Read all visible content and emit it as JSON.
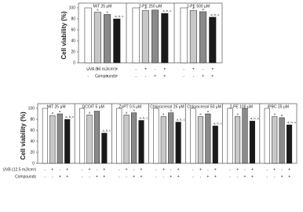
{
  "chart_data": [
    {
      "type": "bar",
      "ylabel": "Cell viability (%)",
      "categories": [
        "MIT 25 μM",
        "2-PE 250 μM",
        "2-PE 500 μM"
      ],
      "ylim": [
        0,
        100
      ],
      "yticks": [
        0,
        20,
        40,
        60,
        80,
        100
      ],
      "series": [
        {
          "color": "#ffffff",
          "values": [
            100,
            100,
            100
          ],
          "labels": [
            null,
            null,
            null
          ]
        },
        {
          "color": "#c8c8c8",
          "values": [
            92,
            95,
            95
          ],
          "labels": [
            "a",
            "a",
            "a"
          ]
        },
        {
          "color": "#8a8a8a",
          "values": [
            88,
            96,
            93
          ],
          "labels": [
            "a",
            null,
            "a"
          ]
        },
        {
          "color": "#1a1a1a",
          "values": [
            80,
            90,
            83
          ],
          "labels": [
            "a, b, c",
            "a, b, c",
            "a, b, c"
          ]
        }
      ],
      "conditions": [
        {
          "label": "UVA (50 mJ/cm²)",
          "signs": [
            "-",
            "+",
            "-",
            "+"
          ]
        },
        {
          "label": "Compounds",
          "signs": [
            "-",
            "-",
            "+",
            "+"
          ]
        }
      ]
    },
    {
      "type": "bar",
      "ylabel": "Cell viability (%)",
      "categories": [
        "MIT 25 μM",
        "DCOIT 5 μM",
        "ZnPT 0.5 μM",
        "Chlorocresol 25 μM",
        "Chlorocresol 50 μM",
        "2-PE 100 μM",
        "IPBC 25 μM"
      ],
      "ylim": [
        0,
        100
      ],
      "yticks": [
        0,
        20,
        40,
        60,
        80,
        100
      ],
      "series": [
        {
          "color": "#ffffff",
          "values": [
            100,
            100,
            100,
            100,
            100,
            100,
            100
          ],
          "labels": [
            null,
            null,
            null,
            null,
            null,
            null,
            null
          ]
        },
        {
          "color": "#c8c8c8",
          "values": [
            87,
            88,
            88,
            85,
            85,
            85,
            85
          ],
          "labels": [
            "a",
            "a",
            "a",
            "a",
            "a",
            "a",
            "a"
          ]
        },
        {
          "color": "#8a8a8a",
          "values": [
            90,
            95,
            92,
            92,
            90,
            100,
            83
          ],
          "labels": [
            "a",
            null,
            "a",
            "a",
            "a",
            null,
            "a"
          ]
        },
        {
          "color": "#1a1a1a",
          "values": [
            80,
            55,
            78,
            75,
            68,
            77,
            70
          ],
          "labels": [
            "a, b, c",
            "a, b, c",
            "a, b, c",
            "a, b, c",
            "a, b, c",
            "a, b, c",
            "a, b, c"
          ]
        }
      ],
      "conditions": [
        {
          "label": "UVB (12.5 mJ/cm²)",
          "signs": [
            "-",
            "+",
            "-",
            "+"
          ]
        },
        {
          "label": "Compounds",
          "signs": [
            "-",
            "-",
            "+",
            "+"
          ]
        }
      ]
    }
  ]
}
